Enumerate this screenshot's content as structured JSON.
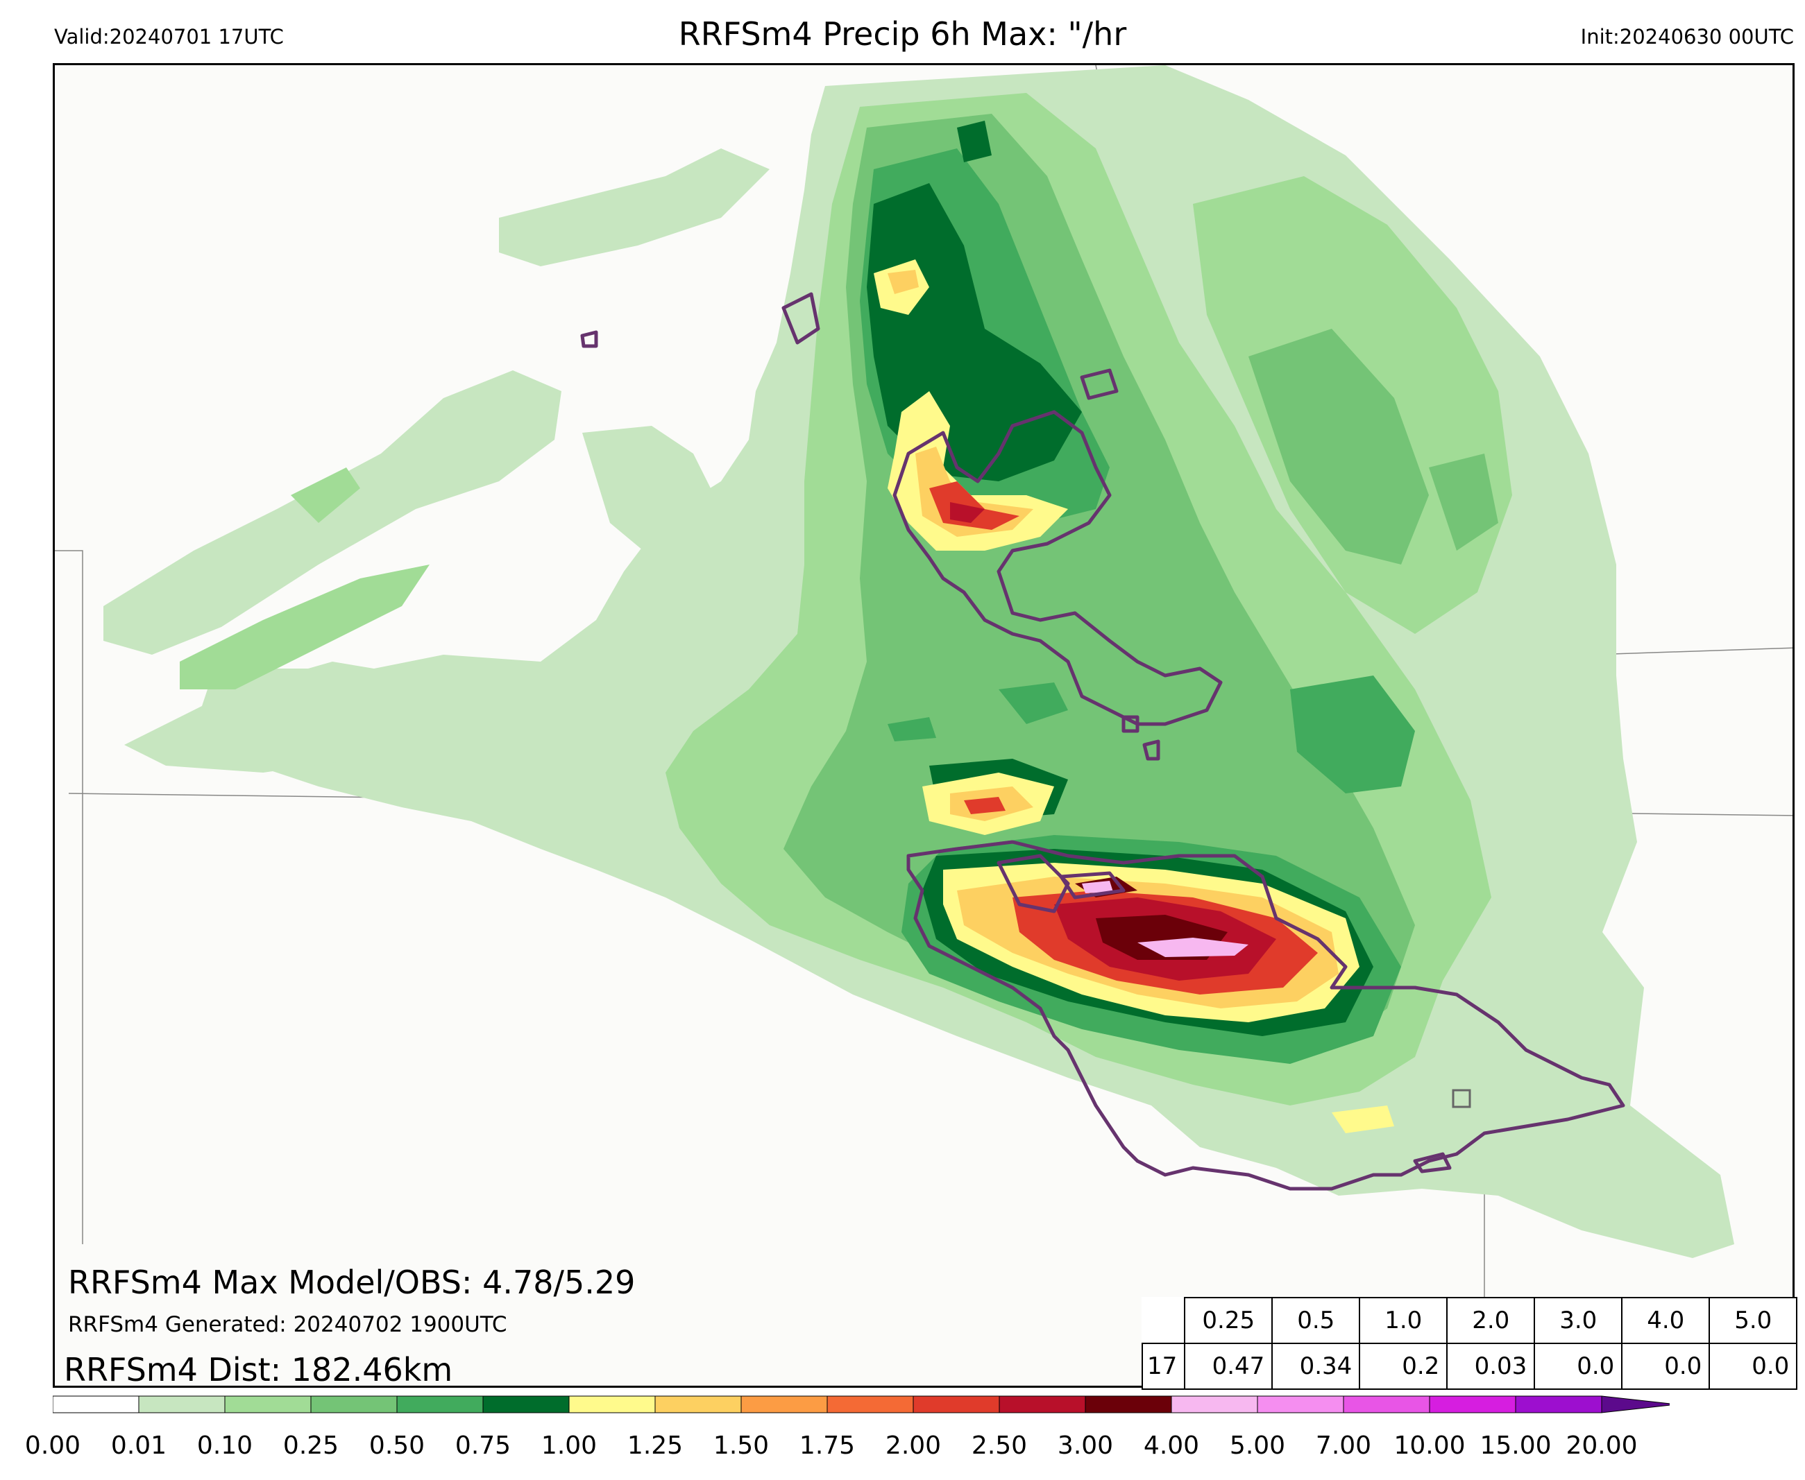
{
  "header": {
    "valid": "Valid:20240701 17UTC",
    "title": "RRFSm4 Precip 6h Max: \"/hr",
    "init": "Init:20240630 00UTC"
  },
  "stats": {
    "max_line": "RRFSm4 Max Model/OBS: 4.78/5.29",
    "generated_line": "RRFSm4 Generated: 20240702 1900UTC",
    "dist_line": "RRFSm4 Dist: 182.46km"
  },
  "threshold_table": {
    "headers": [
      "0.25",
      "0.5",
      "1.0",
      "2.0",
      "3.0",
      "4.0",
      "5.0"
    ],
    "row_label": "17",
    "values": [
      "0.47",
      "0.34",
      "0.2",
      "0.03",
      "0.0",
      "0.0",
      "0.0"
    ]
  },
  "colorbar": {
    "ticks": [
      "0.00",
      "0.01",
      "0.10",
      "0.25",
      "0.50",
      "0.75",
      "1.00",
      "1.25",
      "1.50",
      "1.75",
      "2.00",
      "2.50",
      "3.00",
      "4.00",
      "5.00",
      "7.00",
      "10.00",
      "15.00",
      "20.00"
    ],
    "colors": [
      "#ffffff",
      "#c7e6c0",
      "#a1dc96",
      "#74c476",
      "#41ab5d",
      "#006d2c",
      "#fffa8c",
      "#fdd061",
      "#fc9c44",
      "#f46a35",
      "#e03b2b",
      "#b8102a",
      "#6b0009",
      "#f7b8f0",
      "#f58ef0",
      "#e855e6",
      "#d61ee0",
      "#9d0fcf"
    ],
    "extend_color": "#5c0a8c"
  },
  "map_colors": {
    "light": "#c7e6c0",
    "pale": "#a1dc96",
    "mid": "#74c476",
    "green": "#41ab5d",
    "dark": "#006d2c",
    "yellow": "#fffa8c",
    "orange": "#fdd061",
    "dorange": "#fc9c44",
    "red": "#e03b2b",
    "crimson": "#b8102a",
    "maroon": "#6b0009",
    "pink": "#f7b8f0",
    "obs_contour": "#66336e"
  }
}
